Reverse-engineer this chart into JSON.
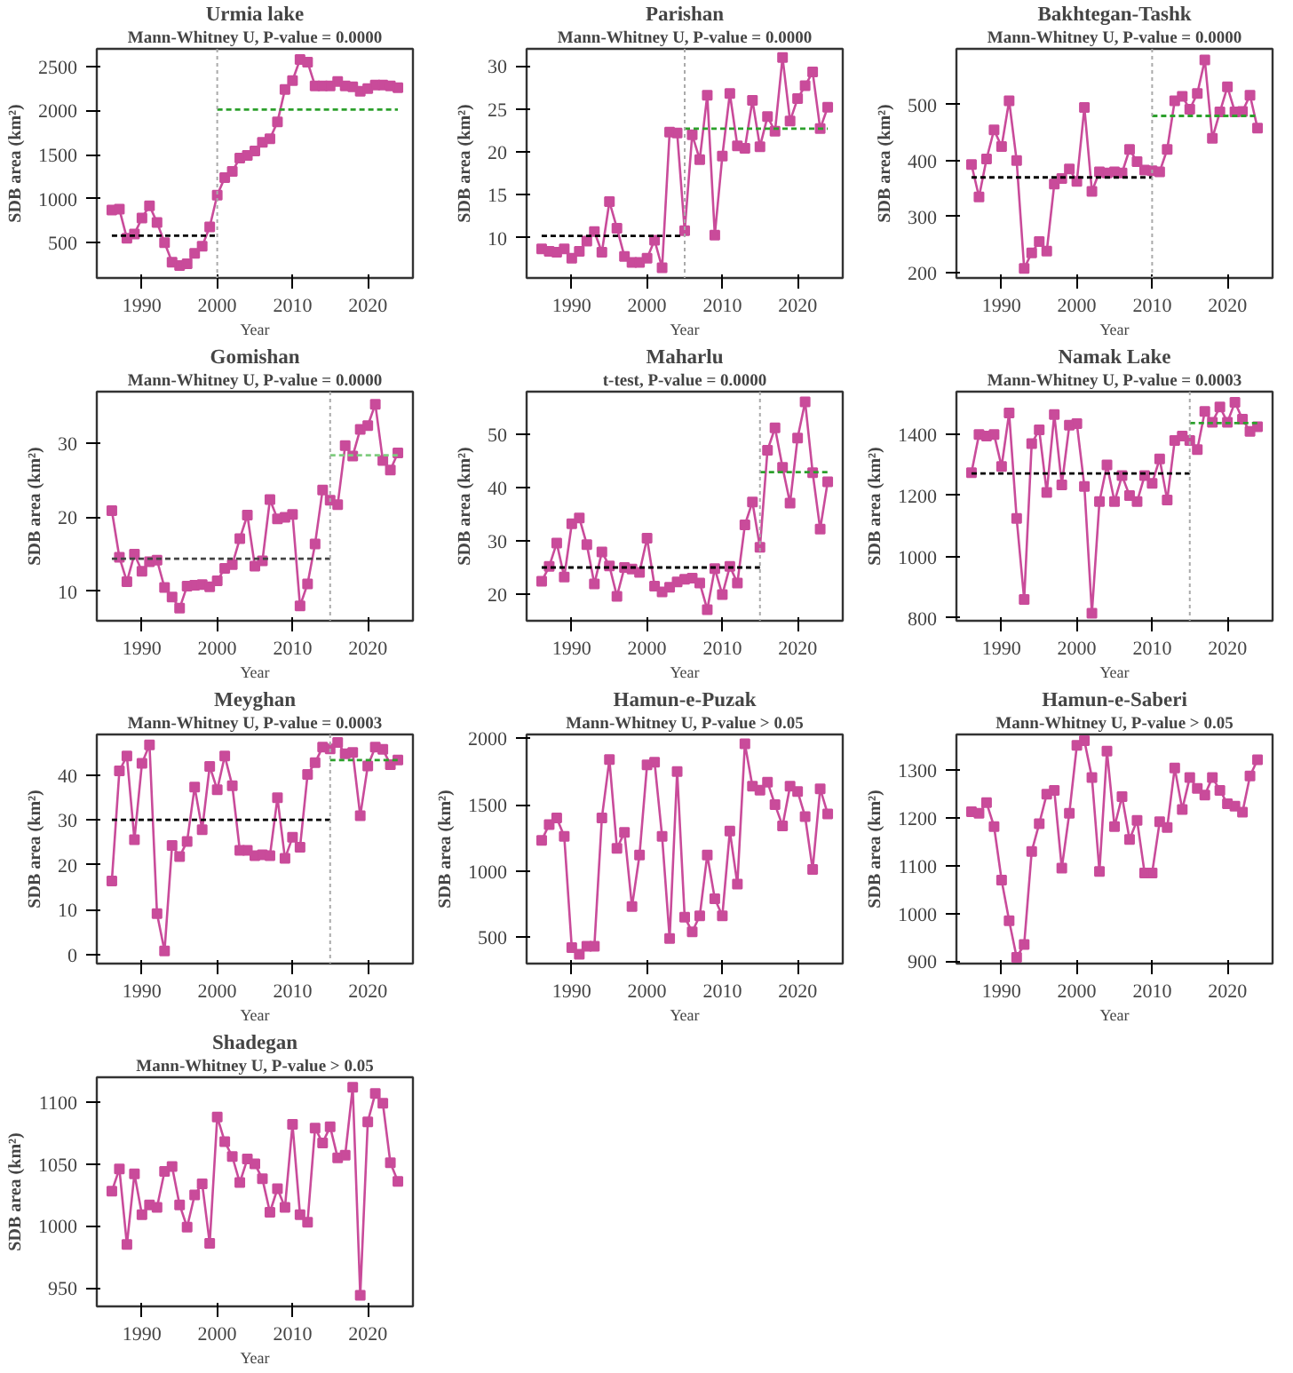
{
  "chart_data": [
    {
      "type": "line",
      "title": "Urmia lake",
      "subtitle": "Mann-Whitney U, P-value = 0.0000",
      "xlabel": "Year",
      "ylabel": "SDB area (km²)",
      "marker": "square",
      "line_style": "solid",
      "xlim": [
        1984,
        2026
      ],
      "xticks": [
        1990,
        2000,
        2010,
        2020
      ],
      "ylim": [
        100,
        2700
      ],
      "yticks": [
        500,
        1000,
        1500,
        2000,
        2500
      ],
      "x": [
        1986,
        1987,
        1988,
        1989,
        1990,
        1991,
        1992,
        1993,
        1994,
        1995,
        1996,
        1997,
        1998,
        1999,
        2000,
        2001,
        2002,
        2003,
        2004,
        2005,
        2006,
        2007,
        2008,
        2009,
        2010,
        2011,
        2012,
        2013,
        2014,
        2015,
        2016,
        2017,
        2018,
        2019,
        2020,
        2021,
        2022,
        2023,
        2024
      ],
      "series": [
        {
          "color": "#c94b9a",
          "values": [
            870,
            880,
            550,
            600,
            780,
            920,
            730,
            500,
            280,
            240,
            260,
            380,
            460,
            680,
            1040,
            1240,
            1310,
            1460,
            1490,
            1540,
            1640,
            1680,
            1870,
            2240,
            2340,
            2580,
            2550,
            2280,
            2280,
            2280,
            2330,
            2280,
            2270,
            2220,
            2250,
            2290,
            2290,
            2280,
            2260
          ]
        },
        {
          "type": "line",
          "marker": "none",
          "line_style": "dashed",
          "color": "#000000",
          "x": [
            1986,
            2000
          ],
          "values": [
            580,
            580
          ]
        },
        {
          "type": "line",
          "marker": "none",
          "line_style": "dashed",
          "color": "#2ca02c",
          "x": [
            2000,
            2024
          ],
          "values": [
            2010,
            2010
          ]
        }
      ],
      "ref_lines": [
        {
          "axis": "x",
          "value": 2000,
          "color": "#aaaaaa",
          "line_style": "dotted"
        }
      ]
    },
    {
      "type": "line",
      "title": "Parishan",
      "subtitle": "Mann-Whitney U, P-value = 0.0000",
      "xlabel": "Year",
      "ylabel": "SDB area (km²)",
      "marker": "square",
      "line_style": "solid",
      "xlim": [
        1984,
        2026
      ],
      "xticks": [
        1990,
        2000,
        2010,
        2020
      ],
      "ylim": [
        5.3,
        32
      ],
      "yticks": [
        10,
        15,
        20,
        25,
        30
      ],
      "x": [
        1986,
        1987,
        1988,
        1989,
        1990,
        1991,
        1992,
        1993,
        1994,
        1995,
        1996,
        1997,
        1998,
        1999,
        2000,
        2001,
        2002,
        2003,
        2004,
        2005,
        2006,
        2007,
        2008,
        2009,
        2010,
        2011,
        2012,
        2013,
        2014,
        2015,
        2016,
        2017,
        2018,
        2019,
        2020,
        2021,
        2022,
        2023,
        2024
      ],
      "series": [
        {
          "color": "#c94b9a",
          "values": [
            8.7,
            8.4,
            8.3,
            8.7,
            7.6,
            8.4,
            9.6,
            10.7,
            8.3,
            14.2,
            11.1,
            7.8,
            7.1,
            7.1,
            7.6,
            9.7,
            6.5,
            22.3,
            22.2,
            10.8,
            22.0,
            19.1,
            26.6,
            10.3,
            19.5,
            26.8,
            20.7,
            20.4,
            26.0,
            20.6,
            24.1,
            22.4,
            31.0,
            23.6,
            26.2,
            27.7,
            29.3,
            22.7,
            25.2
          ]
        },
        {
          "type": "line",
          "marker": "none",
          "line_style": "dashed",
          "color": "#000000",
          "x": [
            1986,
            2005
          ],
          "values": [
            10.2,
            10.2
          ]
        },
        {
          "type": "line",
          "marker": "none",
          "line_style": "dashed",
          "color": "#2ca02c",
          "x": [
            2005,
            2024
          ],
          "values": [
            22.7,
            22.7
          ]
        }
      ],
      "ref_lines": [
        {
          "axis": "x",
          "value": 2005,
          "color": "#aaaaaa",
          "line_style": "dotted"
        }
      ]
    },
    {
      "type": "line",
      "title": "Bakhtegan-Tashk",
      "subtitle": "Mann-Whitney U, P-value = 0.0000",
      "xlabel": "Year",
      "ylabel": "SDB area (km²)",
      "marker": "square",
      "line_style": "solid",
      "xlim": [
        1984,
        2026
      ],
      "xticks": [
        1990,
        2000,
        2010,
        2020
      ],
      "ylim": [
        190,
        600
      ],
      "yticks": [
        200,
        300,
        400,
        500
      ],
      "x": [
        1986,
        1987,
        1988,
        1989,
        1990,
        1991,
        1992,
        1993,
        1994,
        1995,
        1996,
        1997,
        1998,
        1999,
        2000,
        2001,
        2002,
        2003,
        2004,
        2005,
        2006,
        2007,
        2008,
        2009,
        2010,
        2011,
        2012,
        2013,
        2014,
        2015,
        2016,
        2017,
        2018,
        2019,
        2020,
        2021,
        2022,
        2023,
        2024
      ],
      "series": [
        {
          "color": "#c94b9a",
          "values": [
            393,
            335,
            403,
            455,
            425,
            507,
            400,
            207,
            235,
            255,
            238,
            358,
            368,
            385,
            363,
            495,
            345,
            380,
            378,
            380,
            378,
            420,
            398,
            383,
            382,
            380,
            420,
            507,
            515,
            492,
            520,
            580,
            440,
            487,
            532,
            487,
            488,
            517,
            458
          ]
        },
        {
          "type": "line",
          "marker": "none",
          "line_style": "dashed",
          "color": "#000000",
          "x": [
            1986,
            2010
          ],
          "values": [
            370,
            370
          ]
        },
        {
          "type": "line",
          "marker": "none",
          "line_style": "dashed",
          "color": "#2ca02c",
          "x": [
            2010,
            2024
          ],
          "values": [
            480,
            480
          ]
        }
      ],
      "ref_lines": [
        {
          "axis": "x",
          "value": 2010,
          "color": "#aaaaaa",
          "line_style": "dotted"
        }
      ]
    },
    {
      "type": "line",
      "title": "Gomishan",
      "subtitle": "Mann-Whitney U, P-value = 0.0000",
      "xlabel": "Year",
      "ylabel": "SDB area (km²)",
      "marker": "square",
      "line_style": "solid",
      "xlim": [
        1984,
        2026
      ],
      "xticks": [
        1990,
        2000,
        2010,
        2020
      ],
      "ylim": [
        6,
        37
      ],
      "yticks": [
        10,
        20,
        30
      ],
      "x": [
        1986,
        1987,
        1988,
        1989,
        1990,
        1991,
        1992,
        1993,
        1994,
        1995,
        1996,
        1997,
        1998,
        1999,
        2000,
        2001,
        2002,
        2003,
        2004,
        2005,
        2006,
        2007,
        2008,
        2009,
        2010,
        2011,
        2012,
        2013,
        2014,
        2015,
        2016,
        2017,
        2018,
        2019,
        2020,
        2021,
        2022,
        2023,
        2024
      ],
      "series": [
        {
          "color": "#c94b9a",
          "values": [
            20.9,
            14.6,
            11.3,
            15.0,
            12.7,
            14.0,
            14.2,
            10.5,
            9.2,
            7.7,
            10.7,
            10.8,
            10.9,
            10.6,
            11.4,
            13.1,
            13.6,
            17.1,
            20.3,
            13.4,
            14.1,
            22.4,
            19.8,
            20.0,
            20.4,
            8.0,
            11.0,
            16.4,
            23.7,
            22.3,
            21.7,
            29.7,
            28.3,
            31.9,
            32.4,
            35.3,
            27.7,
            26.4,
            28.7
          ]
        },
        {
          "type": "line",
          "marker": "none",
          "line_style": "dashed",
          "color": "#444444",
          "x": [
            1986,
            2015
          ],
          "values": [
            14.4,
            14.4
          ]
        },
        {
          "type": "line",
          "marker": "none",
          "line_style": "dashed",
          "color": "#7fcc7f",
          "x": [
            2015,
            2024
          ],
          "values": [
            28.4,
            28.4
          ]
        }
      ],
      "ref_lines": [
        {
          "axis": "x",
          "value": 2015,
          "color": "#aaaaaa",
          "line_style": "dotted"
        }
      ]
    },
    {
      "type": "line",
      "title": "Maharlu",
      "subtitle": "t-test, P-value = 0.0000",
      "xlabel": "Year",
      "ylabel": "SDB area (km²)",
      "marker": "square",
      "line_style": "solid",
      "xlim": [
        1984,
        2026
      ],
      "xticks": [
        1990,
        2000,
        2010,
        2020
      ],
      "ylim": [
        15,
        58
      ],
      "yticks": [
        20,
        30,
        40,
        50
      ],
      "x": [
        1986,
        1987,
        1988,
        1989,
        1990,
        1991,
        1992,
        1993,
        1994,
        1995,
        1996,
        1997,
        1998,
        1999,
        2000,
        2001,
        2002,
        2003,
        2004,
        2005,
        2006,
        2007,
        2008,
        2009,
        2010,
        2011,
        2012,
        2013,
        2014,
        2015,
        2016,
        2017,
        2018,
        2019,
        2020,
        2021,
        2022,
        2023,
        2024
      ],
      "series": [
        {
          "color": "#c94b9a",
          "values": [
            22.4,
            25.2,
            29.6,
            23.2,
            33.2,
            34.3,
            29.3,
            21.9,
            27.9,
            25.3,
            19.6,
            25.0,
            24.7,
            24.1,
            30.5,
            21.5,
            20.4,
            21.3,
            22.3,
            22.8,
            23.0,
            22.1,
            17.1,
            24.8,
            19.9,
            25.2,
            22.1,
            33.0,
            37.3,
            28.8,
            47.0,
            51.2,
            43.8,
            37.1,
            49.3,
            56.1,
            42.8,
            32.2,
            41.1
          ]
        },
        {
          "type": "line",
          "marker": "none",
          "line_style": "dashed",
          "color": "#000000",
          "x": [
            1986,
            2015
          ],
          "values": [
            25.0,
            25.0
          ]
        },
        {
          "type": "line",
          "marker": "none",
          "line_style": "dashed",
          "color": "#2ca02c",
          "x": [
            2015,
            2024
          ],
          "values": [
            42.9,
            42.9
          ]
        }
      ],
      "ref_lines": [
        {
          "axis": "x",
          "value": 2015,
          "color": "#aaaaaa",
          "line_style": "dotted"
        }
      ]
    },
    {
      "type": "line",
      "title": "Namak Lake",
      "subtitle": "Mann-Whitney U, P-value = 0.0003",
      "xlabel": "Year",
      "ylabel": "SDB area (km²)",
      "marker": "square",
      "line_style": "solid",
      "xlim": [
        1984,
        2026
      ],
      "xticks": [
        1990,
        2000,
        2010,
        2020
      ],
      "ylim": [
        790,
        1540
      ],
      "yticks": [
        800,
        1000,
        1200,
        1400
      ],
      "x": [
        1986,
        1987,
        1988,
        1989,
        1990,
        1991,
        1992,
        1993,
        1994,
        1995,
        1996,
        1997,
        1998,
        1999,
        2000,
        2001,
        2002,
        2003,
        2004,
        2005,
        2006,
        2007,
        2008,
        2009,
        2010,
        2011,
        2012,
        2013,
        2014,
        2015,
        2016,
        2017,
        2018,
        2019,
        2020,
        2021,
        2022,
        2023,
        2024
      ],
      "series": [
        {
          "color": "#c94b9a",
          "values": [
            1275,
            1400,
            1395,
            1400,
            1295,
            1470,
            1125,
            860,
            1370,
            1415,
            1210,
            1465,
            1235,
            1430,
            1435,
            1230,
            815,
            1180,
            1300,
            1180,
            1265,
            1200,
            1180,
            1265,
            1240,
            1320,
            1185,
            1380,
            1395,
            1380,
            1350,
            1475,
            1440,
            1490,
            1440,
            1505,
            1450,
            1410,
            1425
          ]
        },
        {
          "type": "line",
          "marker": "none",
          "line_style": "dashed",
          "color": "#000000",
          "x": [
            1986,
            2015
          ],
          "values": [
            1272,
            1272
          ]
        },
        {
          "type": "line",
          "marker": "none",
          "line_style": "dashed",
          "color": "#2ca02c",
          "x": [
            2015,
            2024
          ],
          "values": [
            1437,
            1437
          ]
        }
      ],
      "ref_lines": [
        {
          "axis": "x",
          "value": 2015,
          "color": "#aaaaaa",
          "line_style": "dotted"
        }
      ]
    },
    {
      "type": "line",
      "title": "Meyghan",
      "subtitle": "Mann-Whitney U, P-value = 0.0003",
      "xlabel": "Year",
      "ylabel": "SDB area (km²)",
      "marker": "square",
      "line_style": "solid",
      "xlim": [
        1984,
        2026
      ],
      "xticks": [
        1990,
        2000,
        2010,
        2020
      ],
      "ylim": [
        -2,
        49
      ],
      "yticks": [
        0,
        10,
        20,
        30,
        40
      ],
      "x": [
        1986,
        1987,
        1988,
        1989,
        1990,
        1991,
        1992,
        1993,
        1994,
        1995,
        1996,
        1997,
        1998,
        1999,
        2000,
        2001,
        2002,
        2003,
        2004,
        2005,
        2006,
        2007,
        2008,
        2009,
        2010,
        2011,
        2012,
        2013,
        2014,
        2015,
        2016,
        2017,
        2018,
        2019,
        2020,
        2021,
        2022,
        2023,
        2024
      ],
      "series": [
        {
          "color": "#c94b9a",
          "values": [
            16.4,
            40.9,
            44.2,
            25.6,
            42.6,
            46.7,
            9.1,
            0.8,
            24.3,
            21.8,
            25.2,
            37.3,
            27.8,
            41.9,
            36.7,
            44.2,
            37.6,
            23.2,
            23.2,
            22.0,
            22.2,
            22.0,
            34.9,
            21.4,
            26.1,
            23.9,
            40.1,
            42.7,
            46.2,
            45.8,
            47.2,
            44.7,
            45.0,
            30.9,
            42.0,
            46.2,
            45.7,
            42.3,
            43.3
          ]
        },
        {
          "type": "line",
          "marker": "none",
          "line_style": "dashed",
          "color": "#000000",
          "x": [
            1986,
            2015
          ],
          "values": [
            30.0,
            30.0
          ]
        },
        {
          "type": "line",
          "marker": "none",
          "line_style": "dashed",
          "color": "#2ca02c",
          "x": [
            2015,
            2024
          ],
          "values": [
            43.3,
            43.3
          ]
        }
      ],
      "ref_lines": [
        {
          "axis": "x",
          "value": 2015,
          "color": "#aaaaaa",
          "line_style": "dotted"
        }
      ]
    },
    {
      "type": "line",
      "title": "Hamun-e-Puzak",
      "subtitle": "Mann-Whitney U, P-value > 0.05",
      "xlabel": "Year",
      "ylabel": "SDB area (km²)",
      "marker": "square",
      "line_style": "solid",
      "xlim": [
        1984,
        2026
      ],
      "xticks": [
        1990,
        2000,
        2010,
        2020
      ],
      "ylim": [
        300,
        2030
      ],
      "yticks": [
        500,
        1000,
        1500,
        2000
      ],
      "x": [
        1986,
        1987,
        1988,
        1989,
        1990,
        1991,
        1992,
        1993,
        1994,
        1995,
        1996,
        1997,
        1998,
        1999,
        2000,
        2001,
        2002,
        2003,
        2004,
        2005,
        2006,
        2007,
        2008,
        2009,
        2010,
        2011,
        2012,
        2013,
        2014,
        2015,
        2016,
        2017,
        2018,
        2019,
        2020,
        2021,
        2022,
        2023,
        2024
      ],
      "series": [
        {
          "color": "#c94b9a",
          "values": [
            1230,
            1350,
            1400,
            1260,
            420,
            370,
            430,
            430,
            1400,
            1840,
            1170,
            1290,
            730,
            1120,
            1800,
            1820,
            1260,
            490,
            1750,
            650,
            540,
            660,
            1120,
            790,
            660,
            1300,
            900,
            1960,
            1640,
            1610,
            1670,
            1500,
            1340,
            1640,
            1600,
            1410,
            1010,
            1620,
            1430
          ]
        }
      ]
    },
    {
      "type": "line",
      "title": "Hamun-e-Saberi",
      "subtitle": "Mann-Whitney U, P-value > 0.05",
      "xlabel": "Year",
      "ylabel": "SDB area (km²)",
      "marker": "square",
      "line_style": "solid",
      "xlim": [
        1984,
        2026
      ],
      "xticks": [
        1990,
        2000,
        2010,
        2020
      ],
      "ylim": [
        895,
        1375
      ],
      "yticks": [
        900,
        1000,
        1100,
        1200,
        1300
      ],
      "x": [
        1986,
        1987,
        1988,
        1989,
        1990,
        1991,
        1992,
        1993,
        1994,
        1995,
        1996,
        1997,
        1998,
        1999,
        2000,
        2001,
        2002,
        2003,
        2004,
        2005,
        2006,
        2007,
        2008,
        2009,
        2010,
        2011,
        2012,
        2013,
        2014,
        2015,
        2016,
        2017,
        2018,
        2019,
        2020,
        2021,
        2022,
        2023,
        2024
      ],
      "series": [
        {
          "color": "#c94b9a",
          "values": [
            1213,
            1210,
            1232,
            1182,
            1070,
            985,
            908,
            935,
            1130,
            1188,
            1250,
            1258,
            1095,
            1210,
            1352,
            1362,
            1285,
            1088,
            1340,
            1182,
            1245,
            1155,
            1195,
            1085,
            1085,
            1192,
            1180,
            1305,
            1218,
            1285,
            1262,
            1248,
            1285,
            1258,
            1230,
            1225,
            1212,
            1288,
            1322
          ]
        }
      ]
    },
    {
      "type": "line",
      "title": "Shadegan",
      "subtitle": "Mann-Whitney U, P-value > 0.05",
      "xlabel": "Year",
      "ylabel": "SDB area (km²)",
      "marker": "square",
      "line_style": "solid",
      "xlim": [
        1984,
        2026
      ],
      "xticks": [
        1990,
        2000,
        2010,
        2020
      ],
      "ylim": [
        935,
        1120
      ],
      "yticks": [
        950,
        1000,
        1050,
        1100
      ],
      "x": [
        1986,
        1987,
        1988,
        1989,
        1990,
        1991,
        1992,
        1993,
        1994,
        1995,
        1996,
        1997,
        1998,
        1999,
        2000,
        2001,
        2002,
        2003,
        2004,
        2005,
        2006,
        2007,
        2008,
        2009,
        2010,
        2011,
        2012,
        2013,
        2014,
        2015,
        2016,
        2017,
        2018,
        2019,
        2020,
        2021,
        2022,
        2023,
        2024
      ],
      "series": [
        {
          "color": "#c94b9a",
          "values": [
            1028,
            1046,
            985,
            1042,
            1009,
            1017,
            1015,
            1044,
            1048,
            1017,
            999,
            1025,
            1034,
            986,
            1088,
            1068,
            1056,
            1035,
            1054,
            1050,
            1038,
            1011,
            1030,
            1015,
            1082,
            1009,
            1003,
            1079,
            1067,
            1080,
            1055,
            1057,
            1112,
            944,
            1084,
            1107,
            1099,
            1051,
            1036
          ]
        }
      ]
    }
  ]
}
